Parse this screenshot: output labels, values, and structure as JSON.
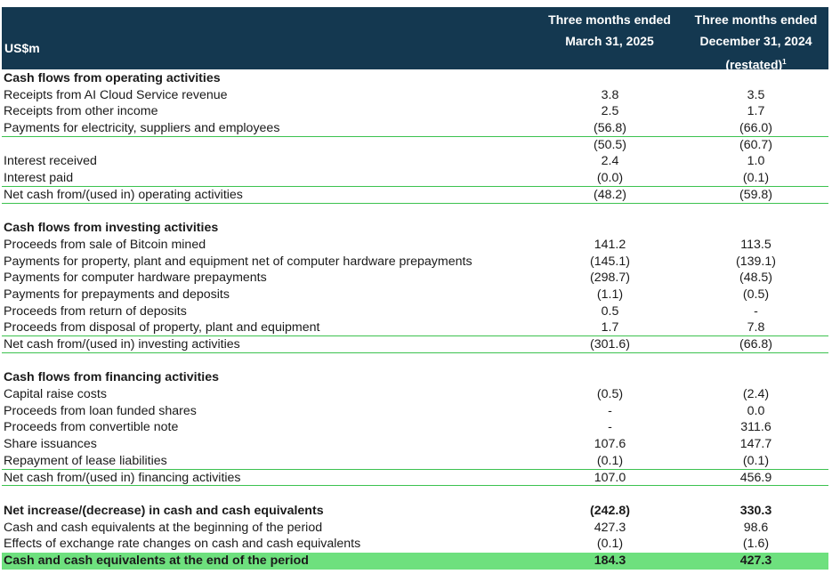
{
  "header": {
    "unit_label": "US$m",
    "col1_line1": "Three months ended",
    "col1_line2": "March 31, 2025",
    "col2_line1": "Three months ended",
    "col2_line2": "December 31, 2024",
    "col2_line3": "(restated)",
    "col2_footnote": "1"
  },
  "rows": [
    {
      "label": "Cash flows from operating activities",
      "v1": "",
      "v2": "",
      "style": "section"
    },
    {
      "label": "Receipts from AI Cloud Service revenue",
      "v1": "3.8",
      "v2": "3.5",
      "style": ""
    },
    {
      "label": "Receipts from other income",
      "v1": "2.5",
      "v2": "1.7",
      "style": ""
    },
    {
      "label": "Payments for electricity, suppliers and employees",
      "v1": "(56.8)",
      "v2": "(66.0)",
      "style": "line"
    },
    {
      "label": "",
      "v1": "(50.5)",
      "v2": "(60.7)",
      "style": ""
    },
    {
      "label": "Interest received",
      "v1": "2.4",
      "v2": "1.0",
      "style": ""
    },
    {
      "label": "Interest paid",
      "v1": "(0.0)",
      "v2": "(0.1)",
      "style": "line"
    },
    {
      "label": "Net cash from/(used in) operating activities",
      "v1": "(48.2)",
      "v2": "(59.8)",
      "style": "line"
    },
    {
      "label": "",
      "v1": "",
      "v2": "",
      "style": "spacer"
    },
    {
      "label": "Cash flows from investing activities",
      "v1": "",
      "v2": "",
      "style": "section"
    },
    {
      "label": "Proceeds from sale of Bitcoin mined",
      "v1": "141.2",
      "v2": "113.5",
      "style": ""
    },
    {
      "label": "Payments for property, plant and equipment net of computer hardware prepayments",
      "v1": "(145.1)",
      "v2": "(139.1)",
      "style": ""
    },
    {
      "label": "Payments for computer hardware prepayments",
      "v1": "(298.7)",
      "v2": "(48.5)",
      "style": ""
    },
    {
      "label": "Payments for prepayments and deposits",
      "v1": "(1.1)",
      "v2": "(0.5)",
      "style": ""
    },
    {
      "label": "Proceeds from return of deposits",
      "v1": "0.5",
      "v2": "-",
      "style": ""
    },
    {
      "label": "Proceeds from disposal of property, plant and equipment",
      "v1": "1.7",
      "v2": "7.8",
      "style": "line"
    },
    {
      "label": "Net cash from/(used in) investing activities",
      "v1": "(301.6)",
      "v2": "(66.8)",
      "style": "line"
    },
    {
      "label": "",
      "v1": "",
      "v2": "",
      "style": "spacer"
    },
    {
      "label": "Cash flows from financing activities",
      "v1": "",
      "v2": "",
      "style": "section"
    },
    {
      "label": "Capital raise costs",
      "v1": "(0.5)",
      "v2": "(2.4)",
      "style": ""
    },
    {
      "label": "Proceeds from loan funded shares",
      "v1": "-",
      "v2": "0.0",
      "style": ""
    },
    {
      "label": "Proceeds from convertible note",
      "v1": "-",
      "v2": "311.6",
      "style": ""
    },
    {
      "label": "Share issuances",
      "v1": "107.6",
      "v2": "147.7",
      "style": ""
    },
    {
      "label": "Repayment of lease liabilities",
      "v1": "(0.1)",
      "v2": "(0.1)",
      "style": "line"
    },
    {
      "label": "Net cash from/(used in) financing activities",
      "v1": "107.0",
      "v2": "456.9",
      "style": "line"
    },
    {
      "label": "",
      "v1": "",
      "v2": "",
      "style": "spacer"
    },
    {
      "label": "Net increase/(decrease) in cash and cash equivalents",
      "v1": "(242.8)",
      "v2": "330.3",
      "style": "bold"
    },
    {
      "label": "Cash and cash equivalents at the beginning of the period",
      "v1": "427.3",
      "v2": "98.6",
      "style": ""
    },
    {
      "label": "Effects of exchange rate changes on cash and cash equivalents",
      "v1": "(0.1)",
      "v2": "(1.6)",
      "style": ""
    },
    {
      "label": "Cash and cash equivalents at the end of the period",
      "v1": "184.3",
      "v2": "427.3",
      "style": "final"
    }
  ]
}
